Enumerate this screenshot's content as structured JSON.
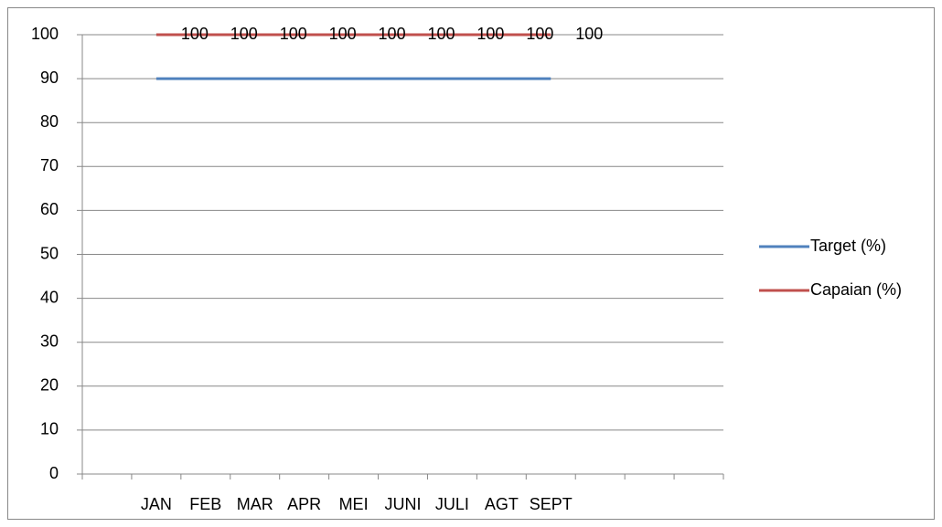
{
  "chart_data": {
    "type": "line",
    "categories": [
      null,
      "JAN",
      "FEB",
      "MAR",
      "APR",
      "MEI",
      "JUNI",
      "JULI",
      "AGT",
      "SEPT",
      null,
      null,
      null
    ],
    "series": [
      {
        "name": "Target (%)",
        "color": "#4f81bd",
        "values": [
          null,
          90,
          90,
          90,
          90,
          90,
          90,
          90,
          90,
          90,
          null,
          null,
          null
        ]
      },
      {
        "name": "Capaian (%)",
        "color": "#c0504d",
        "values": [
          null,
          100,
          100,
          100,
          100,
          100,
          100,
          100,
          100,
          100,
          null,
          null,
          null
        ],
        "data_labels": true
      }
    ],
    "ylim": [
      0,
      100
    ],
    "yticks": [
      0,
      10,
      20,
      30,
      40,
      50,
      60,
      70,
      80,
      90,
      100
    ],
    "grid": true,
    "legend": "right"
  }
}
